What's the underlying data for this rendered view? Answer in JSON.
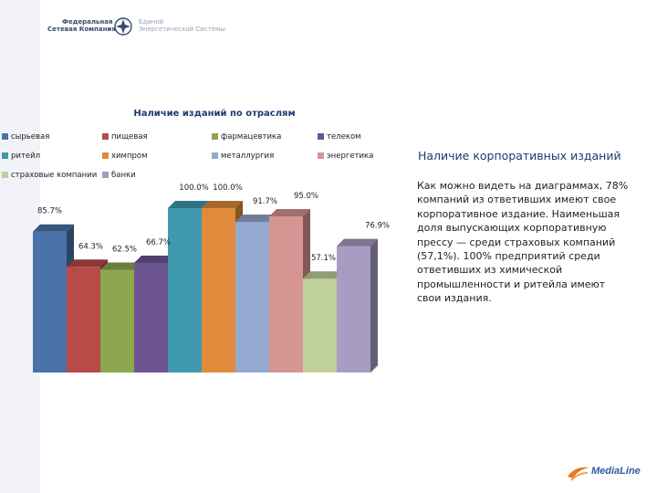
{
  "header": {
    "logo_left_line1": "Федеральная",
    "logo_left_line2": "Сетевая Компания",
    "logo_right_line1": "Единой",
    "logo_right_line2": "Энергетической Системы"
  },
  "chart_data": {
    "type": "bar",
    "title": "Наличие изданий по отраслям",
    "xlabel": "",
    "ylabel": "",
    "ylim": [
      0,
      100
    ],
    "grid": false,
    "legend_position": "top",
    "categories": [
      "сырьевая",
      "пищевая",
      "фармацевтика",
      "телеком",
      "ритейл",
      "химпром",
      "металлургия",
      "энергетика",
      "страховые компании",
      "банки"
    ],
    "values": [
      85.7,
      64.3,
      62.5,
      66.7,
      100.0,
      100.0,
      91.7,
      95.0,
      57.1,
      76.9
    ],
    "data_labels": [
      "85.7%",
      "64.3%",
      "62.5%",
      "66.7%",
      "100.0%",
      "100.0%",
      "91.7%",
      "95.0%",
      "57.1%",
      "76.9%"
    ],
    "colors": [
      "#4a72a8",
      "#b84a47",
      "#8ea64f",
      "#6d5591",
      "#3f9ab0",
      "#e08a3c",
      "#94a8d0",
      "#d59593",
      "#bfd09b",
      "#a99cc3"
    ]
  },
  "side": {
    "title": "Наличие корпоративных изданий",
    "text": "Как можно видеть на диаграммах, 78% компаний из ответивших имеют свое корпоративное издание. Наименьшая доля выпускающих корпоративную прессу — среди страховых компаний (57,1%). 100% предприятий среди ответивших из химической промышленности и ритейла имеют свои издания."
  },
  "footer": {
    "brand": "MediaLine"
  }
}
